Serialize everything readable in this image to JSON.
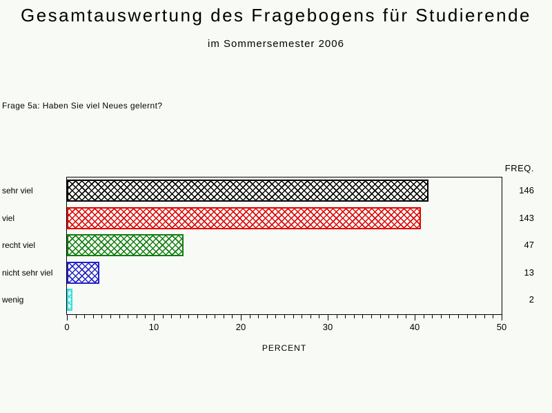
{
  "header": {
    "title": "Gesamtauswertung des Fragebogens für Studierende",
    "subtitle": "im Sommersemester 2006"
  },
  "question": "Frage 5a: Haben Sie viel Neues gelernt?",
  "freq_column": {
    "header": "FREQ.",
    "values": [
      "146",
      "143",
      "47",
      "13",
      "2"
    ]
  },
  "colors": {
    "background": "#f8faf5",
    "frame": "#000000",
    "text": "#000000"
  },
  "chart_data": {
    "type": "bar",
    "orientation": "horizontal",
    "title": "Gesamtauswertung des Fragebogens für Studierende im Sommersemester 2006",
    "subtitle_question": "Frage 5a: Haben Sie viel Neues gelernt?",
    "categories": [
      "sehr viel",
      "viel",
      "recht viel",
      "nicht sehr viel",
      "wenig"
    ],
    "frequencies": [
      146,
      143,
      47,
      13,
      2
    ],
    "percents": [
      41.6,
      40.7,
      13.4,
      3.7,
      0.6
    ],
    "bar_colors": [
      "#000000",
      "#e00000",
      "#107d10",
      "#2222cc",
      "#35e0e0"
    ],
    "pattern": "crosshatch",
    "xlabel": "PERCENT",
    "freq_label": "FREQ.",
    "xlim": [
      0,
      50
    ],
    "x_tick_labels": [
      "0",
      "10",
      "20",
      "30",
      "40",
      "50"
    ],
    "x_tick_values": [
      0,
      10,
      20,
      30,
      40,
      50
    ],
    "x_minor_step": 1,
    "grid": false,
    "legend": "none"
  }
}
